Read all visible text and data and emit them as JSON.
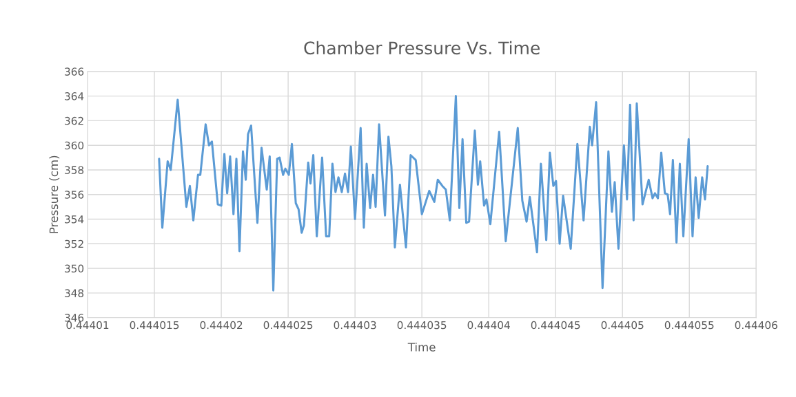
{
  "chart_data": {
    "type": "line",
    "title": "Chamber Pressure Vs. Time",
    "xlabel": "Time",
    "ylabel": "Pressure (cm)",
    "xlim": [
      0.44401,
      0.44406
    ],
    "xticks": [
      0.44401,
      0.444015,
      0.44402,
      0.444025,
      0.44403,
      0.444035,
      0.44404,
      0.444045,
      0.44405,
      0.444055,
      0.44406
    ],
    "ylim": [
      346,
      366
    ],
    "yticks": [
      346,
      348,
      350,
      352,
      354,
      356,
      358,
      360,
      362,
      364,
      366
    ],
    "grid": true,
    "marker": "none",
    "line_style": "solid",
    "series": [
      {
        "color": "#5b9bd5",
        "x": [
          0.44401535,
          0.44401559,
          0.44401599,
          0.44401622,
          0.44401674,
          0.44401739,
          0.44401765,
          0.44401791,
          0.44401826,
          0.44401843,
          0.44401883,
          0.44401908,
          0.4440193,
          0.44401974,
          0.44402,
          0.44402023,
          0.44402044,
          0.44402066,
          0.44402091,
          0.44402113,
          0.44402136,
          0.44402162,
          0.44402183,
          0.444022,
          0.44402223,
          0.4440227,
          0.44402301,
          0.4440234,
          0.44402362,
          0.44402389,
          0.44402418,
          0.44402436,
          0.44402462,
          0.44402479,
          0.44402505,
          0.44402528,
          0.44402557,
          0.44402578,
          0.44402601,
          0.44402618,
          0.4440265,
          0.44402667,
          0.44402688,
          0.44402714,
          0.44402754,
          0.44402784,
          0.44402807,
          0.44402831,
          0.44402854,
          0.44402876,
          0.44402901,
          0.44402925,
          0.44402948,
          0.44402969,
          0.44403,
          0.44403042,
          0.44403066,
          0.44403087,
          0.44403113,
          0.44403135,
          0.44403154,
          0.4440318,
          0.44403224,
          0.4440325,
          0.44403272,
          0.44403298,
          0.44403336,
          0.44403381,
          0.44403416,
          0.44403454,
          0.444035,
          0.44403555,
          0.44403593,
          0.44403619,
          0.44403653,
          0.44403679,
          0.44403709,
          0.44403754,
          0.4440378,
          0.44403804,
          0.44403832,
          0.44403853,
          0.44403896,
          0.44403919,
          0.44403936,
          0.44403965,
          0.44403983,
          0.44404012,
          0.44404078,
          0.44404127,
          0.44404217,
          0.44404251,
          0.44404283,
          0.44404307,
          0.44404361,
          0.4440439,
          0.4440443,
          0.44404457,
          0.44404483,
          0.44404503,
          0.4440453,
          0.44404556,
          0.44404613,
          0.44404663,
          0.44404709,
          0.44404756,
          0.44404773,
          0.44404803,
          0.44404851,
          0.44404895,
          0.44404921,
          0.44404942,
          0.4440497,
          0.44405011,
          0.44405034,
          0.44405057,
          0.44405083,
          0.44405107,
          0.4440515,
          0.44405196,
          0.44405225,
          0.44405243,
          0.44405265,
          0.4440529,
          0.44405317,
          0.44405338,
          0.44405356,
          0.44405377,
          0.44405404,
          0.44405429,
          0.44405455,
          0.44405495,
          0.44405524,
          0.44405547,
          0.4440557,
          0.44405596,
          0.44405617,
          0.44405637
        ],
        "values": [
          358.9,
          353.3,
          358.7,
          358.0,
          363.7,
          355.0,
          356.7,
          353.9,
          357.6,
          357.6,
          361.7,
          360.0,
          360.3,
          355.2,
          355.1,
          359.3,
          356.1,
          359.1,
          354.4,
          358.9,
          351.4,
          359.5,
          357.2,
          360.9,
          361.6,
          353.7,
          359.8,
          356.4,
          359.1,
          348.2,
          358.9,
          359.0,
          357.6,
          358.1,
          357.6,
          360.1,
          355.3,
          354.8,
          352.9,
          353.5,
          358.6,
          356.9,
          359.2,
          352.6,
          359.0,
          352.6,
          352.6,
          358.5,
          356.2,
          357.4,
          356.2,
          357.7,
          356.2,
          359.9,
          354.0,
          361.4,
          353.3,
          358.5,
          354.9,
          357.6,
          355.0,
          361.7,
          354.3,
          360.7,
          358.3,
          351.7,
          356.8,
          351.7,
          359.2,
          358.8,
          354.4,
          356.3,
          355.4,
          357.2,
          356.7,
          356.4,
          353.9,
          364.0,
          354.9,
          360.5,
          353.7,
          353.8,
          361.2,
          356.8,
          358.7,
          355.1,
          355.6,
          353.6,
          361.1,
          352.2,
          361.4,
          355.5,
          353.8,
          355.8,
          351.3,
          358.5,
          352.3,
          359.4,
          356.7,
          357.1,
          352.0,
          355.9,
          351.6,
          360.1,
          353.9,
          361.5,
          360.0,
          363.5,
          348.4,
          359.5,
          354.6,
          357.0,
          351.6,
          360.0,
          355.6,
          363.3,
          353.9,
          363.4,
          355.2,
          357.2,
          355.7,
          356.1,
          355.7,
          359.4,
          356.1,
          356.0,
          354.4,
          358.8,
          352.1,
          358.5,
          352.6,
          360.5,
          352.6,
          357.4,
          354.1,
          357.4,
          355.6,
          358.3
        ]
      }
    ]
  }
}
